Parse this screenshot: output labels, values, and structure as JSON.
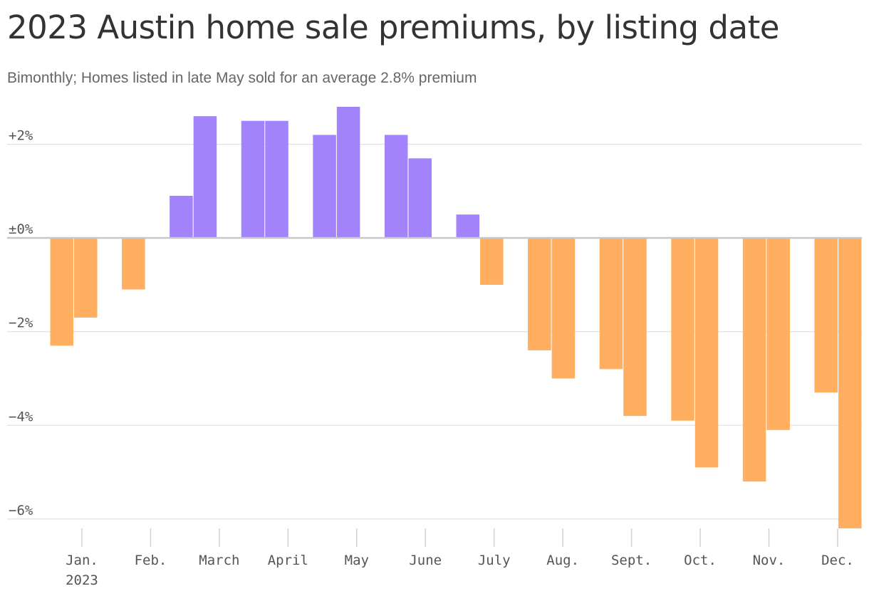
{
  "title": "2023 Austin home sale premiums, by listing date",
  "subtitle": "Bimonthly; Homes listed in late May sold for an average 2.8% premium",
  "colors": {
    "positive": "#a383fb",
    "negative": "#ffaf5f",
    "grid": "#e0e0e0",
    "zero_line": "#c8c8c8",
    "axis_tick": "#d0d0d0"
  },
  "chart_data": {
    "type": "bar",
    "ylim": [
      -6.2,
      2.8
    ],
    "y_ticks": [
      {
        "value": 2,
        "label": "+2%"
      },
      {
        "value": 0,
        "label": "±0%"
      },
      {
        "value": -2,
        "label": "−2%"
      },
      {
        "value": -4,
        "label": "−4%"
      },
      {
        "value": -6,
        "label": "−6%"
      }
    ],
    "months": [
      {
        "label": "Jan.",
        "sublabel": "2023"
      },
      {
        "label": "Feb.",
        "sublabel": ""
      },
      {
        "label": "March",
        "sublabel": ""
      },
      {
        "label": "April",
        "sublabel": ""
      },
      {
        "label": "May",
        "sublabel": ""
      },
      {
        "label": "June",
        "sublabel": ""
      },
      {
        "label": "July",
        "sublabel": ""
      },
      {
        "label": "Aug.",
        "sublabel": ""
      },
      {
        "label": "Sept.",
        "sublabel": ""
      },
      {
        "label": "Oct.",
        "sublabel": ""
      },
      {
        "label": "Nov.",
        "sublabel": ""
      },
      {
        "label": "Dec.",
        "sublabel": ""
      }
    ],
    "series": [
      {
        "values": [
          -2.3,
          -1.7,
          null,
          -1.1,
          null,
          0.9,
          2.6,
          null,
          2.5,
          2.5,
          null,
          2.2,
          2.8,
          null,
          2.2,
          1.7,
          null,
          0.5,
          -1.0,
          null,
          -2.4,
          -3.0,
          null,
          -2.8,
          -3.8,
          null,
          -3.9,
          -4.9,
          null,
          -5.2,
          -4.1,
          null,
          -3.3,
          -6.2
        ]
      }
    ],
    "grid": true,
    "legend": "none"
  }
}
